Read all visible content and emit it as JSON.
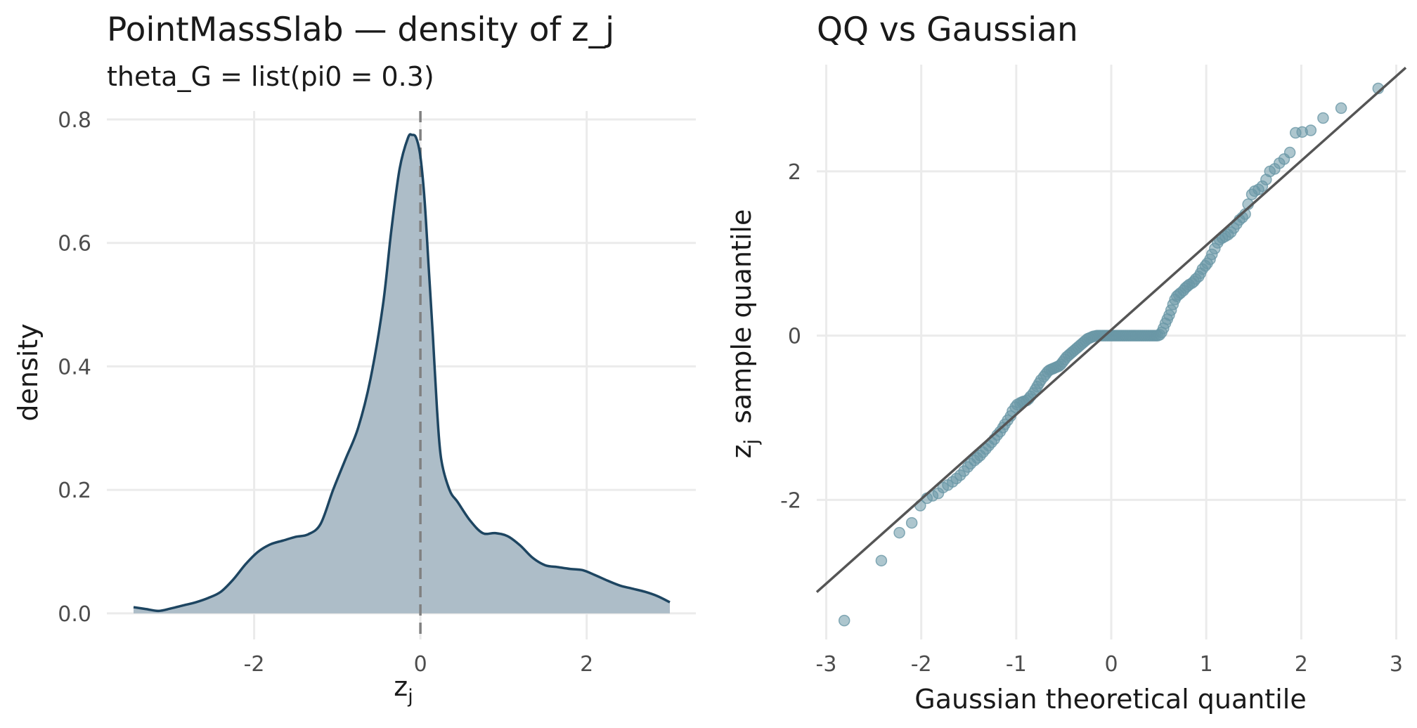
{
  "chart_data": [
    {
      "type": "area",
      "title": "PointMassSlab — density of z_j",
      "subtitle": "theta_G = list(pi0 = 0.3)",
      "xlabel": {
        "base": "z",
        "sub": "j"
      },
      "ylabel": "density",
      "xlim": [
        -3.45,
        3.0
      ],
      "ylim": [
        -0.04,
        0.8
      ],
      "x_ticks": [
        -2,
        0,
        2
      ],
      "x_tick_labels": [
        "-2",
        "0",
        "2"
      ],
      "y_ticks": [
        0.0,
        0.2,
        0.4,
        0.6,
        0.8
      ],
      "y_tick_labels": [
        "0.0",
        "0.2",
        "0.4",
        "0.6",
        "0.8"
      ],
      "grid": true,
      "reference_line": {
        "x": 0,
        "style": "dashed"
      },
      "colors": {
        "line": "#1d4561",
        "fill": "#adbdc8",
        "reference": "#808080",
        "grid": "#ebebeb"
      },
      "x": [
        -3.45,
        -3.3,
        -3.15,
        -3.0,
        -2.85,
        -2.7,
        -2.55,
        -2.4,
        -2.25,
        -2.1,
        -1.95,
        -1.8,
        -1.65,
        -1.5,
        -1.35,
        -1.2,
        -1.05,
        -0.9,
        -0.75,
        -0.6,
        -0.45,
        -0.35,
        -0.25,
        -0.15,
        -0.1,
        -0.05,
        0.0,
        0.05,
        0.1,
        0.15,
        0.2,
        0.25,
        0.35,
        0.45,
        0.6,
        0.75,
        0.9,
        1.05,
        1.2,
        1.35,
        1.5,
        1.65,
        1.8,
        1.95,
        2.1,
        2.25,
        2.4,
        2.55,
        2.7,
        2.85,
        3.0
      ],
      "y": [
        0.01,
        0.007,
        0.004,
        0.008,
        0.013,
        0.018,
        0.025,
        0.035,
        0.055,
        0.08,
        0.1,
        0.112,
        0.118,
        0.124,
        0.128,
        0.145,
        0.2,
        0.25,
        0.3,
        0.38,
        0.5,
        0.62,
        0.72,
        0.77,
        0.775,
        0.77,
        0.74,
        0.67,
        0.56,
        0.45,
        0.33,
        0.25,
        0.2,
        0.18,
        0.15,
        0.13,
        0.13,
        0.125,
        0.11,
        0.09,
        0.078,
        0.075,
        0.072,
        0.07,
        0.062,
        0.053,
        0.045,
        0.04,
        0.035,
        0.028,
        0.018
      ]
    },
    {
      "type": "scatter",
      "title": "QQ vs Gaussian",
      "xlabel": "Gaussian theoretical quantile",
      "ylabel": {
        "base": "z",
        "sub": "j",
        "text": "sample quantile"
      },
      "xlim": [
        -3.1,
        3.1
      ],
      "ylim": [
        -3.7,
        3.3
      ],
      "x_ticks": [
        -3,
        -2,
        -1,
        0,
        1,
        2,
        3
      ],
      "x_tick_labels": [
        "-3",
        "-2",
        "-1",
        "0",
        "1",
        "2",
        "3"
      ],
      "y_ticks": [
        -2,
        0,
        2
      ],
      "y_tick_labels": [
        "-2",
        "0",
        "2"
      ],
      "grid": true,
      "reference_line": {
        "intercept": 0.07,
        "slope": 1.03
      },
      "colors": {
        "points": "#6a97a6",
        "line": "#555555",
        "grid": "#ebebeb"
      },
      "points": [
        [
          -2.81,
          -3.47
        ],
        [
          -2.42,
          -2.74
        ],
        [
          -2.23,
          -2.4
        ],
        [
          -2.1,
          -2.28
        ],
        [
          -2.01,
          -2.07
        ],
        [
          -1.94,
          -1.98
        ],
        [
          -1.88,
          -1.95
        ],
        [
          -1.82,
          -1.92
        ],
        [
          -1.77,
          -1.85
        ],
        [
          -1.72,
          -1.82
        ],
        [
          -1.67,
          -1.78
        ],
        [
          -1.63,
          -1.74
        ],
        [
          -1.59,
          -1.7
        ],
        [
          -1.55,
          -1.65
        ],
        [
          -1.51,
          -1.6
        ],
        [
          -1.48,
          -1.56
        ],
        [
          -1.44,
          -1.52
        ],
        [
          -1.41,
          -1.49
        ],
        [
          -1.38,
          -1.46
        ],
        [
          -1.35,
          -1.42
        ],
        [
          -1.32,
          -1.38
        ],
        [
          -1.29,
          -1.34
        ],
        [
          -1.26,
          -1.3
        ],
        [
          -1.23,
          -1.26
        ],
        [
          -1.2,
          -1.21
        ],
        [
          -1.17,
          -1.17
        ],
        [
          -1.14,
          -1.12
        ],
        [
          -1.12,
          -1.08
        ],
        [
          -1.09,
          -1.03
        ],
        [
          -1.06,
          -0.98
        ],
        [
          -1.04,
          -0.92
        ],
        [
          -1.01,
          -0.87
        ],
        [
          -0.99,
          -0.84
        ],
        [
          -0.96,
          -0.82
        ],
        [
          -0.94,
          -0.81
        ],
        [
          -0.92,
          -0.8
        ],
        [
          -0.89,
          -0.79
        ],
        [
          -0.87,
          -0.77
        ],
        [
          -0.85,
          -0.74
        ],
        [
          -0.82,
          -0.7
        ],
        [
          -0.8,
          -0.66
        ],
        [
          -0.78,
          -0.62
        ],
        [
          -0.76,
          -0.58
        ],
        [
          -0.74,
          -0.54
        ],
        [
          -0.71,
          -0.5
        ],
        [
          -0.69,
          -0.47
        ],
        [
          -0.67,
          -0.44
        ],
        [
          -0.65,
          -0.42
        ],
        [
          -0.63,
          -0.41
        ],
        [
          -0.61,
          -0.4
        ],
        [
          -0.59,
          -0.39
        ],
        [
          -0.57,
          -0.38
        ],
        [
          -0.55,
          -0.37
        ],
        [
          -0.53,
          -0.35
        ],
        [
          -0.51,
          -0.32
        ],
        [
          -0.49,
          -0.29
        ],
        [
          -0.47,
          -0.26
        ],
        [
          -0.45,
          -0.24
        ],
        [
          -0.43,
          -0.22
        ],
        [
          -0.41,
          -0.2
        ],
        [
          -0.39,
          -0.18
        ],
        [
          -0.37,
          -0.16
        ],
        [
          -0.35,
          -0.14
        ],
        [
          -0.33,
          -0.12
        ],
        [
          -0.31,
          -0.1
        ],
        [
          -0.29,
          -0.08
        ],
        [
          -0.27,
          -0.06
        ],
        [
          -0.25,
          -0.04
        ],
        [
          -0.23,
          -0.03
        ],
        [
          -0.21,
          -0.02
        ],
        [
          -0.19,
          -0.01
        ],
        [
          -0.17,
          -0.005
        ],
        [
          -0.15,
          0.0
        ],
        [
          -0.13,
          0.0
        ],
        [
          -0.11,
          0.0
        ],
        [
          -0.09,
          0.0
        ],
        [
          -0.07,
          0.0
        ],
        [
          -0.05,
          0.0
        ],
        [
          -0.03,
          0.0
        ],
        [
          -0.01,
          0.0
        ],
        [
          0.01,
          0.0
        ],
        [
          0.03,
          0.0
        ],
        [
          0.05,
          0.0
        ],
        [
          0.07,
          0.0
        ],
        [
          0.09,
          0.0
        ],
        [
          0.11,
          0.0
        ],
        [
          0.13,
          0.0
        ],
        [
          0.15,
          0.0
        ],
        [
          0.17,
          0.0
        ],
        [
          0.19,
          0.0
        ],
        [
          0.21,
          0.0
        ],
        [
          0.23,
          0.0
        ],
        [
          0.25,
          0.0
        ],
        [
          0.27,
          0.0
        ],
        [
          0.29,
          0.0
        ],
        [
          0.31,
          0.0
        ],
        [
          0.33,
          0.0
        ],
        [
          0.35,
          0.0
        ],
        [
          0.37,
          0.0
        ],
        [
          0.39,
          0.0
        ],
        [
          0.41,
          0.0
        ],
        [
          0.43,
          0.0
        ],
        [
          0.45,
          0.0
        ],
        [
          0.47,
          0.0
        ],
        [
          0.49,
          0.0
        ],
        [
          0.51,
          0.01
        ],
        [
          0.53,
          0.04
        ],
        [
          0.55,
          0.09
        ],
        [
          0.57,
          0.15
        ],
        [
          0.59,
          0.2
        ],
        [
          0.61,
          0.25
        ],
        [
          0.63,
          0.31
        ],
        [
          0.65,
          0.38
        ],
        [
          0.67,
          0.44
        ],
        [
          0.69,
          0.48
        ],
        [
          0.71,
          0.5
        ],
        [
          0.73,
          0.52
        ],
        [
          0.76,
          0.55
        ],
        [
          0.78,
          0.58
        ],
        [
          0.8,
          0.6
        ],
        [
          0.82,
          0.62
        ],
        [
          0.85,
          0.64
        ],
        [
          0.87,
          0.66
        ],
        [
          0.89,
          0.69
        ],
        [
          0.92,
          0.72
        ],
        [
          0.94,
          0.76
        ],
        [
          0.96,
          0.81
        ],
        [
          0.99,
          0.85
        ],
        [
          1.01,
          0.88
        ],
        [
          1.04,
          0.93
        ],
        [
          1.06,
          0.99
        ],
        [
          1.09,
          1.06
        ],
        [
          1.12,
          1.13
        ],
        [
          1.14,
          1.17
        ],
        [
          1.17,
          1.19
        ],
        [
          1.2,
          1.21
        ],
        [
          1.23,
          1.23
        ],
        [
          1.26,
          1.26
        ],
        [
          1.29,
          1.31
        ],
        [
          1.32,
          1.36
        ],
        [
          1.35,
          1.41
        ],
        [
          1.38,
          1.44
        ],
        [
          1.41,
          1.48
        ],
        [
          1.44,
          1.6
        ],
        [
          1.48,
          1.72
        ],
        [
          1.51,
          1.76
        ],
        [
          1.55,
          1.78
        ],
        [
          1.59,
          1.82
        ],
        [
          1.63,
          1.9
        ],
        [
          1.67,
          2.0
        ],
        [
          1.72,
          2.03
        ],
        [
          1.77,
          2.1
        ],
        [
          1.82,
          2.15
        ],
        [
          1.88,
          2.23
        ],
        [
          1.94,
          2.47
        ],
        [
          2.01,
          2.48
        ],
        [
          2.1,
          2.5
        ],
        [
          2.23,
          2.65
        ],
        [
          2.42,
          2.77
        ],
        [
          2.81,
          3.01
        ]
      ]
    }
  ]
}
